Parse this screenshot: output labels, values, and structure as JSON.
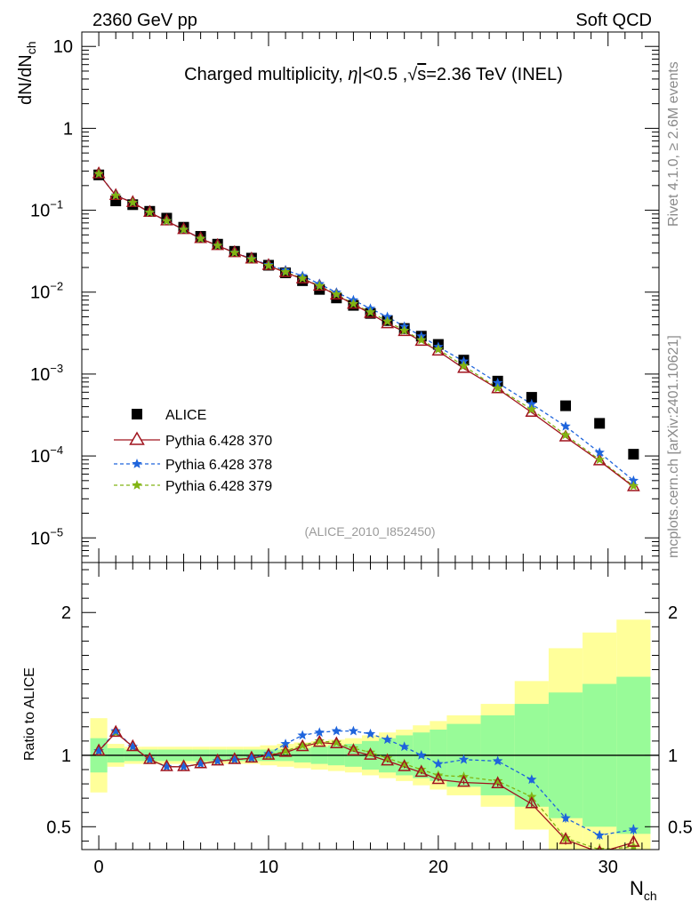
{
  "header": {
    "left": "2360 GeV pp",
    "right": "Soft QCD"
  },
  "side_text": {
    "rivet": "Rivet 4.1.0, ≥ 2.6M events",
    "mcplots": "mcplots.cern.ch [arXiv:2401.10621]"
  },
  "colors": {
    "alice": "#000000",
    "p370": "#a0141e",
    "p378": "#1e64dc",
    "p379": "#82b414",
    "band_green": "#98fb98",
    "band_yellow": "#ffff9a"
  },
  "chart_data": [
    {
      "type": "scatter",
      "title": "Charged multiplicity, η|<0.5 ,√s=2.36 TeV (INEL)",
      "title_parts": {
        "pre": "Charged multiplicity, ",
        "eta": "η",
        "mid": "|<0.5 ,",
        "sqrt": "√",
        "s": "s",
        "post": "=2.36 TeV (INEL)"
      },
      "ylabel": "dN/dN",
      "ylabel_sub": "ch",
      "yscale": "log",
      "xlim": [
        -1,
        33
      ],
      "ylim": [
        5e-06,
        15
      ],
      "yticks": [
        {
          "v": 10,
          "label": "10"
        },
        {
          "v": 1,
          "label": "1"
        },
        {
          "v": 0.1,
          "base": "10",
          "exp": "−1"
        },
        {
          "v": 0.01,
          "base": "10",
          "exp": "−2"
        },
        {
          "v": 0.001,
          "base": "10",
          "exp": "−3"
        },
        {
          "v": 0.0001,
          "base": "10",
          "exp": "−4"
        },
        {
          "v": 1e-05,
          "base": "10",
          "exp": "−5"
        }
      ],
      "watermark": "(ALICE_2010_I852450)",
      "x": [
        0,
        1,
        2,
        3,
        4,
        5,
        6,
        7,
        8,
        9,
        10,
        11,
        12,
        13,
        14,
        15,
        16,
        17,
        18,
        19,
        20,
        21.5,
        23.5,
        25.5,
        27.5,
        29.5,
        31.5
      ],
      "legend": {
        "placement": "middle-left",
        "entries": [
          "ALICE",
          "Pythia 6.428 370",
          "Pythia 6.428 378",
          "Pythia 6.428 379"
        ]
      },
      "series": [
        {
          "name": "ALICE",
          "marker": "square",
          "values": [
            0.27,
            0.13,
            0.117,
            0.097,
            0.08,
            0.062,
            0.048,
            0.0385,
            0.0315,
            0.026,
            0.0213,
            0.0172,
            0.0138,
            0.0108,
            0.0085,
            0.0069,
            0.0055,
            0.0045,
            0.0036,
            0.0029,
            0.0023,
            0.00148,
            0.00082,
            0.00052,
            0.00041,
            0.00025,
            0.000105
          ]
        },
        {
          "name": "Pythia 6.428 370",
          "marker": "triangle",
          "values": [
            0.278,
            0.151,
            0.124,
            0.094,
            0.074,
            0.058,
            0.045,
            0.037,
            0.0303,
            0.0253,
            0.0211,
            0.0173,
            0.0145,
            0.0118,
            0.0092,
            0.0071,
            0.0055,
            0.0041,
            0.0033,
            0.0025,
            0.0019,
            0.00117,
            0.00066,
            0.00034,
            0.00017,
            8.7e-05,
            4.2e-05
          ]
        },
        {
          "name": "Pythia 6.428 378",
          "marker": "star",
          "values": [
            0.278,
            0.152,
            0.124,
            0.094,
            0.074,
            0.058,
            0.045,
            0.037,
            0.0305,
            0.0255,
            0.0215,
            0.0185,
            0.0158,
            0.0126,
            0.0099,
            0.008,
            0.0063,
            0.005,
            0.0038,
            0.0029,
            0.00215,
            0.00143,
            0.00078,
            0.00043,
            0.00023,
            0.00011,
            5e-05
          ]
        },
        {
          "name": "Pythia 6.428 379",
          "marker": "star",
          "values": [
            0.278,
            0.151,
            0.124,
            0.094,
            0.074,
            0.058,
            0.045,
            0.037,
            0.0303,
            0.0253,
            0.0211,
            0.0176,
            0.0147,
            0.0119,
            0.0094,
            0.0072,
            0.0057,
            0.0044,
            0.0034,
            0.0026,
            0.002,
            0.00126,
            0.00067,
            0.00037,
            0.00018,
            9e-05,
            4.3e-05
          ]
        }
      ]
    },
    {
      "type": "line",
      "ylabel": "Ratio to ALICE",
      "xlabel": "N",
      "xlabel_sub": "ch",
      "xlim": [
        -1,
        33
      ],
      "ylim": [
        0.34,
        2.35
      ],
      "yticks": [
        {
          "v": 0.5,
          "label": "0.5"
        },
        {
          "v": 1,
          "label": "1"
        },
        {
          "v": 2,
          "label": "2"
        }
      ],
      "xticks": [
        {
          "v": 0,
          "label": "0"
        },
        {
          "v": 10,
          "label": "10"
        },
        {
          "v": 20,
          "label": "20"
        },
        {
          "v": 30,
          "label": "30"
        }
      ],
      "reference_line": 1,
      "bands": {
        "green_halfwidth": [
          0.12,
          0.05,
          0.04,
          0.04,
          0.04,
          0.04,
          0.04,
          0.04,
          0.04,
          0.04,
          0.04,
          0.04,
          0.05,
          0.06,
          0.07,
          0.08,
          0.1,
          0.12,
          0.14,
          0.16,
          0.18,
          0.22,
          0.28,
          0.36,
          0.44,
          0.5,
          0.55
        ],
        "yellow_halfwidth": [
          0.26,
          0.08,
          0.06,
          0.06,
          0.06,
          0.06,
          0.06,
          0.06,
          0.06,
          0.06,
          0.07,
          0.08,
          0.09,
          0.1,
          0.11,
          0.12,
          0.14,
          0.16,
          0.18,
          0.21,
          0.24,
          0.28,
          0.36,
          0.52,
          0.75,
          0.86,
          0.95
        ]
      },
      "series": [
        {
          "name": "Pythia 6.428 370",
          "values": [
            1.03,
            1.16,
            1.06,
            0.97,
            0.92,
            0.92,
            0.94,
            0.96,
            0.97,
            0.98,
            1.0,
            1.02,
            1.06,
            1.09,
            1.08,
            1.03,
            1.0,
            0.96,
            0.92,
            0.88,
            0.83,
            0.81,
            0.8,
            0.66,
            0.41,
            0.32,
            0.39
          ],
          "errors": [
            0.005,
            0.005,
            0.005,
            0.005,
            0.005,
            0.005,
            0.005,
            0.005,
            0.005,
            0.005,
            0.005,
            0.005,
            0.005,
            0.006,
            0.006,
            0.007,
            0.008,
            0.009,
            0.01,
            0.011,
            0.012,
            0.014,
            0.018,
            0.025,
            0.035,
            0.04,
            0.035
          ]
        },
        {
          "name": "Pythia 6.428 378",
          "values": [
            1.03,
            1.17,
            1.06,
            0.97,
            0.92,
            0.92,
            0.94,
            0.96,
            0.97,
            0.98,
            1.01,
            1.08,
            1.14,
            1.16,
            1.17,
            1.17,
            1.15,
            1.11,
            1.06,
            1.0,
            0.94,
            0.97,
            0.96,
            0.83,
            0.56,
            0.44,
            0.48
          ],
          "errors": [
            0.005,
            0.005,
            0.005,
            0.005,
            0.005,
            0.005,
            0.005,
            0.005,
            0.005,
            0.005,
            0.005,
            0.005,
            0.005,
            0.006,
            0.006,
            0.007,
            0.008,
            0.009,
            0.01,
            0.011,
            0.012,
            0.014,
            0.018,
            0.025,
            0.03,
            0.03,
            0.035
          ]
        },
        {
          "name": "Pythia 6.428 379",
          "values": [
            1.03,
            1.16,
            1.06,
            0.97,
            0.92,
            0.92,
            0.94,
            0.96,
            0.97,
            0.98,
            1.0,
            1.03,
            1.07,
            1.1,
            1.09,
            1.05,
            1.02,
            0.98,
            0.94,
            0.9,
            0.86,
            0.85,
            0.82,
            0.71,
            0.42,
            0.34,
            0.36
          ],
          "errors": [
            0.005,
            0.005,
            0.005,
            0.005,
            0.005,
            0.005,
            0.005,
            0.005,
            0.005,
            0.005,
            0.005,
            0.005,
            0.005,
            0.006,
            0.006,
            0.007,
            0.008,
            0.009,
            0.01,
            0.011,
            0.012,
            0.014,
            0.018,
            0.025,
            0.035,
            0.04,
            0.035
          ]
        }
      ]
    }
  ]
}
